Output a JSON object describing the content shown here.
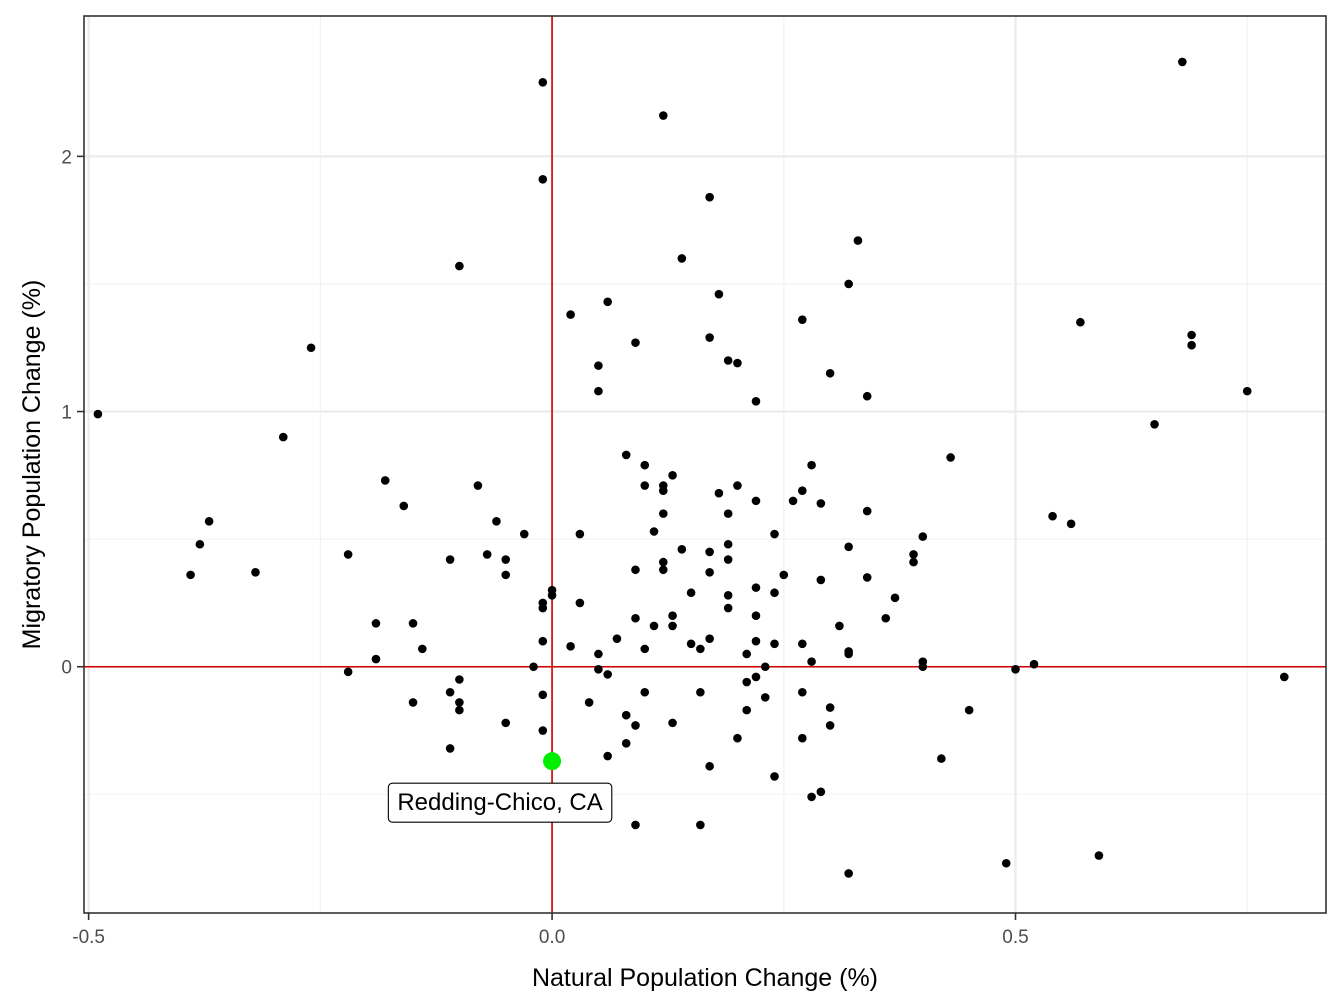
{
  "chart_data": {
    "type": "scatter",
    "xlabel": "Natural Population Change (%)",
    "ylabel": "Migratory Population Change (%)",
    "xlim": [
      -0.505,
      0.835
    ],
    "ylim": [
      -0.965,
      2.55
    ],
    "x_ticks": [
      {
        "value": -0.5,
        "label": "-0.5"
      },
      {
        "value": 0.0,
        "label": "0.0"
      },
      {
        "value": 0.5,
        "label": "0.5"
      }
    ],
    "y_ticks": [
      {
        "value": 0,
        "label": "0"
      },
      {
        "value": 1,
        "label": "1"
      },
      {
        "value": 2,
        "label": "2"
      }
    ],
    "x_minor": [
      -0.25,
      0.25,
      0.75
    ],
    "y_minor": [
      -0.5,
      0.5,
      1.5
    ],
    "grid": true,
    "reference_lines": {
      "x": 0,
      "y": 0,
      "color": "#d40000"
    },
    "point_color": "#000000",
    "highlight": {
      "name": "Redding-Chico, CA",
      "x": 0.0,
      "y": -0.37,
      "color": "#00ee00"
    },
    "points": [
      [
        -0.49,
        0.99
      ],
      [
        -0.39,
        0.36
      ],
      [
        -0.37,
        0.57
      ],
      [
        -0.38,
        0.48
      ],
      [
        -0.32,
        0.37
      ],
      [
        -0.29,
        0.9
      ],
      [
        -0.26,
        1.25
      ],
      [
        -0.22,
        0.44
      ],
      [
        -0.22,
        -0.02
      ],
      [
        -0.19,
        0.17
      ],
      [
        -0.19,
        0.03
      ],
      [
        -0.18,
        0.73
      ],
      [
        -0.16,
        0.63
      ],
      [
        -0.15,
        0.17
      ],
      [
        -0.15,
        -0.14
      ],
      [
        -0.14,
        0.07
      ],
      [
        -0.11,
        0.42
      ],
      [
        -0.11,
        -0.1
      ],
      [
        -0.11,
        -0.32
      ],
      [
        -0.1,
        1.57
      ],
      [
        -0.1,
        -0.05
      ],
      [
        -0.1,
        -0.14
      ],
      [
        -0.1,
        -0.17
      ],
      [
        -0.08,
        0.71
      ],
      [
        -0.07,
        0.44
      ],
      [
        -0.06,
        0.57
      ],
      [
        -0.05,
        0.42
      ],
      [
        -0.05,
        0.36
      ],
      [
        -0.05,
        -0.22
      ],
      [
        -0.03,
        0.52
      ],
      [
        -0.02,
        0.0
      ],
      [
        -0.01,
        2.29
      ],
      [
        -0.01,
        1.91
      ],
      [
        -0.01,
        0.25
      ],
      [
        -0.01,
        0.23
      ],
      [
        -0.01,
        0.1
      ],
      [
        -0.01,
        -0.11
      ],
      [
        -0.01,
        -0.25
      ],
      [
        0.0,
        0.3
      ],
      [
        0.0,
        0.28
      ],
      [
        0.02,
        1.38
      ],
      [
        0.02,
        0.08
      ],
      [
        0.03,
        0.52
      ],
      [
        0.03,
        0.25
      ],
      [
        0.04,
        -0.14
      ],
      [
        0.05,
        1.18
      ],
      [
        0.05,
        1.08
      ],
      [
        0.05,
        0.05
      ],
      [
        0.05,
        -0.01
      ],
      [
        0.06,
        1.43
      ],
      [
        0.06,
        -0.03
      ],
      [
        0.06,
        -0.35
      ],
      [
        0.07,
        0.11
      ],
      [
        0.08,
        0.83
      ],
      [
        0.08,
        -0.19
      ],
      [
        0.08,
        -0.3
      ],
      [
        0.09,
        1.27
      ],
      [
        0.09,
        0.38
      ],
      [
        0.09,
        0.19
      ],
      [
        0.09,
        -0.23
      ],
      [
        0.09,
        -0.62
      ],
      [
        0.1,
        0.79
      ],
      [
        0.1,
        0.71
      ],
      [
        0.1,
        0.07
      ],
      [
        0.1,
        -0.1
      ],
      [
        0.11,
        0.53
      ],
      [
        0.11,
        0.16
      ],
      [
        0.12,
        2.16
      ],
      [
        0.12,
        0.71
      ],
      [
        0.12,
        0.69
      ],
      [
        0.12,
        0.6
      ],
      [
        0.12,
        0.41
      ],
      [
        0.12,
        0.38
      ],
      [
        0.13,
        0.75
      ],
      [
        0.13,
        0.2
      ],
      [
        0.13,
        0.16
      ],
      [
        0.13,
        -0.22
      ],
      [
        0.14,
        1.6
      ],
      [
        0.14,
        0.46
      ],
      [
        0.15,
        0.29
      ],
      [
        0.15,
        0.09
      ],
      [
        0.16,
        0.07
      ],
      [
        0.16,
        -0.1
      ],
      [
        0.16,
        -0.62
      ],
      [
        0.17,
        1.84
      ],
      [
        0.17,
        1.29
      ],
      [
        0.17,
        0.45
      ],
      [
        0.17,
        0.37
      ],
      [
        0.17,
        0.11
      ],
      [
        0.17,
        -0.39
      ],
      [
        0.18,
        1.46
      ],
      [
        0.18,
        0.68
      ],
      [
        0.19,
        1.2
      ],
      [
        0.19,
        0.6
      ],
      [
        0.19,
        0.48
      ],
      [
        0.19,
        0.42
      ],
      [
        0.19,
        0.28
      ],
      [
        0.19,
        0.23
      ],
      [
        0.2,
        1.19
      ],
      [
        0.2,
        0.71
      ],
      [
        0.2,
        -0.28
      ],
      [
        0.21,
        0.05
      ],
      [
        0.21,
        -0.06
      ],
      [
        0.21,
        -0.17
      ],
      [
        0.22,
        1.04
      ],
      [
        0.22,
        0.65
      ],
      [
        0.22,
        0.31
      ],
      [
        0.22,
        0.2
      ],
      [
        0.22,
        0.1
      ],
      [
        0.22,
        -0.04
      ],
      [
        0.23,
        0.0
      ],
      [
        0.23,
        -0.12
      ],
      [
        0.24,
        0.52
      ],
      [
        0.24,
        0.29
      ],
      [
        0.24,
        0.09
      ],
      [
        0.24,
        -0.43
      ],
      [
        0.25,
        0.36
      ],
      [
        0.26,
        0.65
      ],
      [
        0.27,
        1.36
      ],
      [
        0.27,
        0.69
      ],
      [
        0.27,
        0.09
      ],
      [
        0.27,
        -0.1
      ],
      [
        0.27,
        -0.28
      ],
      [
        0.28,
        0.79
      ],
      [
        0.28,
        0.02
      ],
      [
        0.28,
        -0.51
      ],
      [
        0.29,
        0.64
      ],
      [
        0.29,
        0.34
      ],
      [
        0.29,
        -0.49
      ],
      [
        0.3,
        1.15
      ],
      [
        0.3,
        -0.16
      ],
      [
        0.3,
        -0.23
      ],
      [
        0.31,
        0.16
      ],
      [
        0.32,
        1.5
      ],
      [
        0.32,
        0.47
      ],
      [
        0.32,
        0.06
      ],
      [
        0.32,
        0.05
      ],
      [
        0.32,
        -0.81
      ],
      [
        0.33,
        1.67
      ],
      [
        0.34,
        1.06
      ],
      [
        0.34,
        0.61
      ],
      [
        0.34,
        0.35
      ],
      [
        0.36,
        0.19
      ],
      [
        0.37,
        0.27
      ],
      [
        0.39,
        0.44
      ],
      [
        0.39,
        0.41
      ],
      [
        0.4,
        0.51
      ],
      [
        0.4,
        0.02
      ],
      [
        0.4,
        0.0
      ],
      [
        0.42,
        -0.36
      ],
      [
        0.43,
        0.82
      ],
      [
        0.45,
        -0.17
      ],
      [
        0.49,
        -0.77
      ],
      [
        0.5,
        -0.01
      ],
      [
        0.52,
        0.01
      ],
      [
        0.54,
        0.59
      ],
      [
        0.56,
        0.56
      ],
      [
        0.57,
        1.35
      ],
      [
        0.59,
        -0.74
      ],
      [
        0.65,
        0.95
      ],
      [
        0.68,
        2.37
      ],
      [
        0.69,
        1.3
      ],
      [
        0.69,
        1.26
      ],
      [
        0.75,
        1.08
      ],
      [
        0.79,
        -0.04
      ]
    ]
  }
}
